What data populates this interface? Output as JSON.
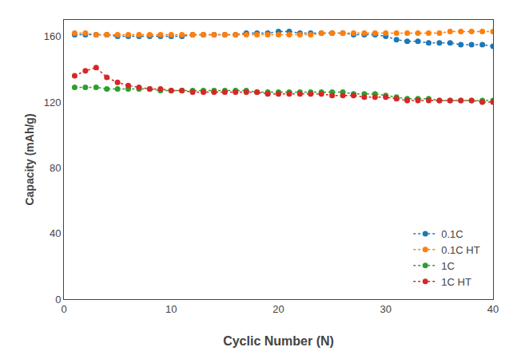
{
  "chart_data": {
    "type": "line",
    "xlabel": "Cyclic Number (N)",
    "ylabel": "Capacity (mAh/g)",
    "xlim": [
      0,
      40
    ],
    "ylim": [
      0,
      170
    ],
    "xticks": [
      0,
      10,
      20,
      30,
      40
    ],
    "yticks": [
      0,
      40,
      80,
      120,
      160
    ],
    "grid": false,
    "legend": "lower right",
    "marker": "circle",
    "line_style": "dotted",
    "x": [
      1,
      2,
      3,
      4,
      5,
      6,
      7,
      8,
      9,
      10,
      11,
      12,
      13,
      14,
      15,
      16,
      17,
      18,
      19,
      20,
      21,
      22,
      23,
      24,
      25,
      26,
      27,
      28,
      29,
      30,
      31,
      32,
      33,
      34,
      35,
      36,
      37,
      38,
      39,
      40
    ],
    "series": [
      {
        "name": "0.1C",
        "values": [
          161,
          161,
          161,
          161,
          160,
          160,
          160,
          160,
          160,
          160,
          160,
          161,
          161,
          161,
          161,
          161,
          162,
          162,
          162,
          163,
          163,
          162,
          162,
          162,
          162,
          162,
          161,
          161,
          161,
          160,
          158,
          157,
          157,
          156,
          156,
          156,
          155,
          155,
          155,
          154
        ]
      },
      {
        "name": "0.1C HT",
        "values": [
          162,
          162,
          161,
          161,
          161,
          161,
          161,
          161,
          161,
          161,
          161,
          161,
          161,
          161,
          161,
          161,
          161,
          161,
          161,
          161,
          161,
          161,
          161,
          162,
          162,
          162,
          162,
          162,
          162,
          162,
          162,
          162,
          162,
          162,
          162,
          163,
          163,
          163,
          163,
          163
        ]
      },
      {
        "name": "1C",
        "values": [
          129,
          129,
          129,
          128,
          128,
          128,
          128,
          128,
          127,
          127,
          127,
          127,
          127,
          127,
          127,
          127,
          127,
          126,
          126,
          126,
          126,
          126,
          126,
          126,
          126,
          126,
          125,
          125,
          125,
          124,
          123,
          122,
          122,
          122,
          121,
          121,
          121,
          121,
          121,
          121
        ]
      },
      {
        "name": "1C HT",
        "values": [
          136,
          139,
          141,
          135,
          132,
          130,
          129,
          128,
          128,
          127,
          127,
          126,
          126,
          126,
          126,
          126,
          126,
          126,
          125,
          125,
          125,
          125,
          125,
          125,
          124,
          124,
          124,
          123,
          123,
          123,
          122,
          121,
          121,
          121,
          121,
          121,
          121,
          121,
          120,
          120
        ]
      }
    ]
  }
}
